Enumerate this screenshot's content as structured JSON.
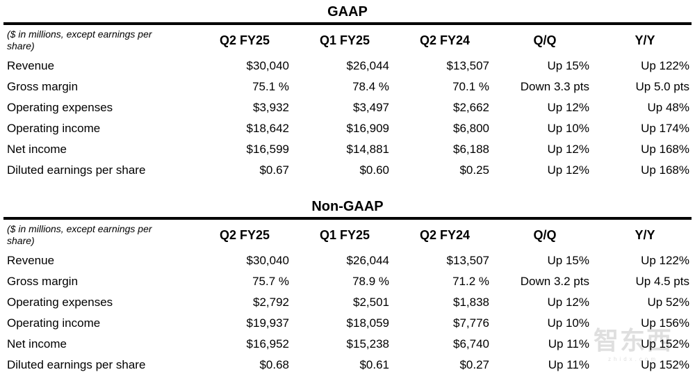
{
  "sections": [
    {
      "title": "GAAP",
      "note": "($ in millions, except earnings per share)",
      "columns": [
        "Q2 FY25",
        "Q1 FY25",
        "Q2 FY24",
        "Q/Q",
        "Y/Y"
      ],
      "rows": [
        {
          "label": "Revenue",
          "values": [
            "$30,040",
            "$26,044",
            "$13,507",
            "Up 15%",
            "Up 122%"
          ]
        },
        {
          "label": "Gross margin",
          "values": [
            "75.1 %",
            "78.4 %",
            "70.1 %",
            "Down 3.3 pts",
            "Up 5.0 pts"
          ]
        },
        {
          "label": "Operating expenses",
          "values": [
            "$3,932",
            "$3,497",
            "$2,662",
            "Up 12%",
            "Up 48%"
          ]
        },
        {
          "label": "Operating income",
          "values": [
            "$18,642",
            "$16,909",
            "$6,800",
            "Up 10%",
            "Up 174%"
          ]
        },
        {
          "label": "Net income",
          "values": [
            "$16,599",
            "$14,881",
            "$6,188",
            "Up 12%",
            "Up 168%"
          ]
        },
        {
          "label": "Diluted earnings per share",
          "values": [
            "$0.67",
            "$0.60",
            "$0.25",
            "Up 12%",
            "Up 168%"
          ]
        }
      ]
    },
    {
      "title": "Non-GAAP",
      "note": "($ in millions, except earnings per share)",
      "columns": [
        "Q2 FY25",
        "Q1 FY25",
        "Q2 FY24",
        "Q/Q",
        "Y/Y"
      ],
      "rows": [
        {
          "label": "Revenue",
          "values": [
            "$30,040",
            "$26,044",
            "$13,507",
            "Up 15%",
            "Up 122%"
          ]
        },
        {
          "label": "Gross margin",
          "values": [
            "75.7 %",
            "78.9 %",
            "71.2 %",
            "Down 3.2 pts",
            "Up 4.5 pts"
          ]
        },
        {
          "label": "Operating expenses",
          "values": [
            "$2,792",
            "$2,501",
            "$1,838",
            "Up 12%",
            "Up 52%"
          ]
        },
        {
          "label": "Operating income",
          "values": [
            "$19,937",
            "$18,059",
            "$7,776",
            "Up 10%",
            "Up 156%"
          ]
        },
        {
          "label": "Net income",
          "values": [
            "$16,952",
            "$15,238",
            "$6,740",
            "Up 11%",
            "Up 152%"
          ]
        },
        {
          "label": "Diluted earnings per share",
          "values": [
            "$0.68",
            "$0.61",
            "$0.27",
            "Up 11%",
            "Up 152%"
          ]
        }
      ]
    }
  ],
  "watermark": {
    "logo": "智东西",
    "subtext": "zhidx.com"
  },
  "colors": {
    "text": "#000000",
    "rule": "#000000",
    "watermark": "#b5b5b5",
    "background": "#ffffff"
  }
}
